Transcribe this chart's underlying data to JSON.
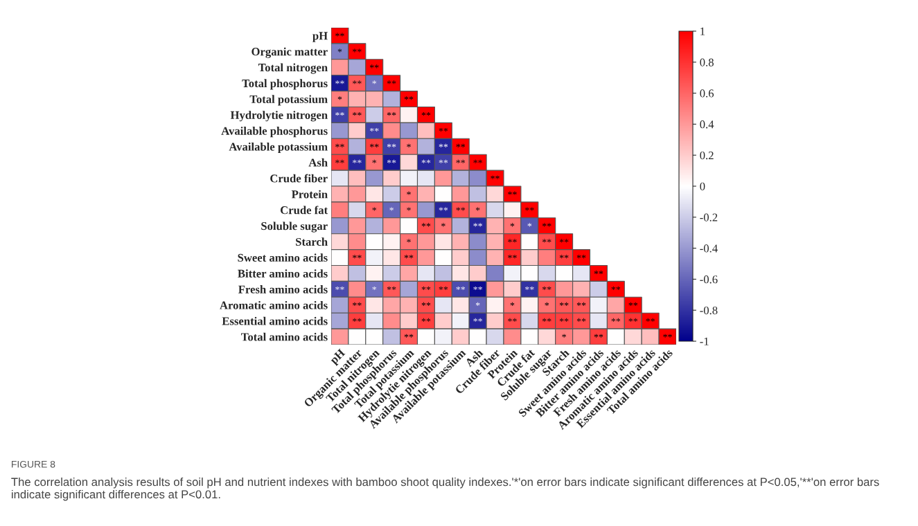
{
  "chart_data": {
    "type": "heatmap",
    "title": "FIGURE 8",
    "annotations": [
      "The correlation analysis results of soil pH and nutrient indexes with bamboo shoot quality indexes.'*'on error bars indicate significant differences at P<0.05,'**'on error bars indicate significant differences at P<0.01."
    ],
    "categories": [
      "pH",
      "Organic matter",
      "Total nitrogen",
      "Total phosphorus",
      "Total potassium",
      "Hydrolytie nitrogen",
      "Available phosphorus",
      "Available potassium",
      "Ash",
      "Crude fiber",
      "Protein",
      "Crude fat",
      "Soluble sugar",
      "Starch",
      "Sweet amino acids",
      "Bitter amino acids",
      "Fresh amino acids",
      "Aromatic amino acids",
      "Essential amino acids",
      "Total amino acids"
    ],
    "y_categories": [
      "pH",
      "Organic matter",
      "Total nitrogen",
      "Total phosphorus",
      "Total potassium",
      "Hydrolytie nitrogen",
      "Available phosphorus",
      "Available potassium",
      "Ash",
      "Crude fiber",
      "Protein",
      "Crude fat",
      "Soluble sugar",
      "Starch",
      "Sweet amino acids",
      "Bitter amino acids",
      "Fresh amino acids",
      "Aromatic amino acids",
      "Essential amino acids",
      "Total amino acids"
    ],
    "cells": [
      [
        1,
        null,
        null,
        null,
        null,
        null,
        null,
        null,
        null,
        null,
        null,
        null,
        null,
        null,
        null,
        null,
        null,
        null,
        null,
        null
      ],
      [
        -0.5,
        1,
        null,
        null,
        null,
        null,
        null,
        null,
        null,
        null,
        null,
        null,
        null,
        null,
        null,
        null,
        null,
        null,
        null,
        null
      ],
      [
        0.4,
        -0.35,
        1,
        null,
        null,
        null,
        null,
        null,
        null,
        null,
        null,
        null,
        null,
        null,
        null,
        null,
        null,
        null,
        null,
        null
      ],
      [
        -0.9,
        0.65,
        -0.55,
        1,
        null,
        null,
        null,
        null,
        null,
        null,
        null,
        null,
        null,
        null,
        null,
        null,
        null,
        null,
        null,
        null
      ],
      [
        0.5,
        0.3,
        0.3,
        -0.3,
        1,
        null,
        null,
        null,
        null,
        null,
        null,
        null,
        null,
        null,
        null,
        null,
        null,
        null,
        null,
        null
      ],
      [
        -0.75,
        0.65,
        -0.2,
        0.6,
        0.05,
        1,
        null,
        null,
        null,
        null,
        null,
        null,
        null,
        null,
        null,
        null,
        null,
        null,
        null,
        null
      ],
      [
        -0.4,
        0.2,
        -0.75,
        0.45,
        -0.4,
        0.25,
        1,
        null,
        null,
        null,
        null,
        null,
        null,
        null,
        null,
        null,
        null,
        null,
        null,
        null
      ],
      [
        0.7,
        -0.3,
        0.75,
        -0.75,
        0.55,
        -0.3,
        -0.85,
        1,
        null,
        null,
        null,
        null,
        null,
        null,
        null,
        null,
        null,
        null,
        null,
        null
      ],
      [
        0.75,
        -0.85,
        0.55,
        -0.9,
        0.15,
        -0.85,
        -0.75,
        0.6,
        1,
        null,
        null,
        null,
        null,
        null,
        null,
        null,
        null,
        null,
        null,
        null
      ],
      [
        -0.1,
        0.25,
        -0.4,
        0.2,
        -0.05,
        -0.1,
        0.4,
        -0.3,
        -0.45,
        1,
        null,
        null,
        null,
        null,
        null,
        null,
        null,
        null,
        null,
        null
      ],
      [
        0.3,
        0.4,
        0.1,
        -0.2,
        0.55,
        0.3,
        0,
        0.4,
        -0.25,
        0.15,
        1,
        null,
        null,
        null,
        null,
        null,
        null,
        null,
        null,
        null
      ],
      [
        0.5,
        -0.15,
        0.6,
        -0.6,
        0.55,
        -0.4,
        -0.85,
        0.7,
        0.55,
        -0.15,
        0.05,
        1,
        null,
        null,
        null,
        null,
        null,
        null,
        null,
        null
      ],
      [
        -0.4,
        0.4,
        -0.3,
        0.4,
        0,
        0.7,
        0.55,
        -0.3,
        -0.85,
        0.3,
        0.55,
        -0.65,
        1,
        null,
        null,
        null,
        null,
        null,
        null,
        null
      ],
      [
        0.15,
        0.45,
        0,
        0.05,
        0.55,
        0.4,
        0.1,
        0.3,
        -0.45,
        0.3,
        0.85,
        0,
        0.7,
        1,
        null,
        null,
        null,
        null,
        null,
        null
      ],
      [
        0,
        0.7,
        -0.05,
        0.1,
        0.7,
        0.4,
        0,
        0.2,
        -0.45,
        0.3,
        0.85,
        0.2,
        0.5,
        0.75,
        1,
        null,
        null,
        null,
        null,
        null
      ],
      [
        0.2,
        -0.25,
        0.05,
        -0.2,
        0.35,
        -0.1,
        -0.25,
        0.1,
        0.2,
        -0.5,
        -0.05,
        0,
        -0.15,
        0,
        -0.1,
        1,
        null,
        null,
        null,
        null
      ],
      [
        -0.7,
        0.45,
        -0.55,
        0.65,
        -0.35,
        0.7,
        0.75,
        -0.7,
        -0.95,
        0.4,
        0.2,
        -0.8,
        0.7,
        0.4,
        0.3,
        -0.2,
        1,
        null,
        null,
        null
      ],
      [
        -0.35,
        0.7,
        0.1,
        0.35,
        0.3,
        0.7,
        -0.1,
        0.1,
        -0.6,
        0.05,
        0.55,
        0.05,
        0.55,
        0.65,
        0.65,
        -0.05,
        0.35,
        1,
        null,
        null
      ],
      [
        -0.35,
        0.75,
        -0.1,
        0.45,
        0.2,
        0.75,
        0.2,
        -0.05,
        -0.85,
        0.2,
        0.7,
        -0.15,
        0.75,
        0.75,
        0.7,
        -0.1,
        0.6,
        0.8,
        1,
        null
      ],
      [
        0.4,
        0,
        0,
        -0.25,
        0.65,
        0,
        -0.05,
        0.2,
        0,
        -0.15,
        0.45,
        0,
        0.15,
        0.5,
        0.4,
        0.75,
        0,
        0.15,
        0.25,
        1
      ]
    ],
    "cell_labels": [
      [
        "**",
        null,
        null,
        null,
        null,
        null,
        null,
        null,
        null,
        null,
        null,
        null,
        null,
        null,
        null,
        null,
        null,
        null,
        null,
        null
      ],
      [
        "*",
        "**",
        null,
        null,
        null,
        null,
        null,
        null,
        null,
        null,
        null,
        null,
        null,
        null,
        null,
        null,
        null,
        null,
        null,
        null
      ],
      [
        null,
        null,
        "**",
        null,
        null,
        null,
        null,
        null,
        null,
        null,
        null,
        null,
        null,
        null,
        null,
        null,
        null,
        null,
        null,
        null
      ],
      [
        "**",
        "**",
        "*",
        "**",
        null,
        null,
        null,
        null,
        null,
        null,
        null,
        null,
        null,
        null,
        null,
        null,
        null,
        null,
        null,
        null
      ],
      [
        "*",
        null,
        null,
        null,
        "**",
        null,
        null,
        null,
        null,
        null,
        null,
        null,
        null,
        null,
        null,
        null,
        null,
        null,
        null,
        null
      ],
      [
        "**",
        "**",
        null,
        "**",
        null,
        "**",
        null,
        null,
        null,
        null,
        null,
        null,
        null,
        null,
        null,
        null,
        null,
        null,
        null,
        null
      ],
      [
        null,
        null,
        "**",
        null,
        null,
        null,
        "**",
        null,
        null,
        null,
        null,
        null,
        null,
        null,
        null,
        null,
        null,
        null,
        null,
        null
      ],
      [
        "**",
        null,
        "**",
        "**",
        "*",
        null,
        "**",
        "**",
        null,
        null,
        null,
        null,
        null,
        null,
        null,
        null,
        null,
        null,
        null,
        null
      ],
      [
        "**",
        "**",
        "*",
        "**",
        null,
        "**",
        "**",
        "**",
        "**",
        null,
        null,
        null,
        null,
        null,
        null,
        null,
        null,
        null,
        null,
        null
      ],
      [
        null,
        null,
        null,
        null,
        null,
        null,
        null,
        null,
        null,
        "**",
        null,
        null,
        null,
        null,
        null,
        null,
        null,
        null,
        null,
        null
      ],
      [
        null,
        null,
        null,
        null,
        "*",
        null,
        null,
        null,
        null,
        null,
        "**",
        null,
        null,
        null,
        null,
        null,
        null,
        null,
        null,
        null
      ],
      [
        null,
        null,
        "*",
        "*",
        "*",
        null,
        "**",
        "**",
        "*",
        null,
        null,
        "**",
        null,
        null,
        null,
        null,
        null,
        null,
        null,
        null
      ],
      [
        null,
        null,
        null,
        null,
        null,
        "**",
        "*",
        null,
        "**",
        null,
        "*",
        "*",
        "**",
        null,
        null,
        null,
        null,
        null,
        null,
        null
      ],
      [
        null,
        null,
        null,
        null,
        "*",
        null,
        null,
        null,
        null,
        null,
        "**",
        null,
        "**",
        "**",
        null,
        null,
        null,
        null,
        null,
        null
      ],
      [
        null,
        "**",
        null,
        null,
        "**",
        null,
        null,
        null,
        null,
        null,
        "**",
        null,
        null,
        "**",
        "**",
        null,
        null,
        null,
        null,
        null
      ],
      [
        null,
        null,
        null,
        null,
        null,
        null,
        null,
        null,
        null,
        null,
        null,
        null,
        null,
        null,
        null,
        "**",
        null,
        null,
        null,
        null
      ],
      [
        "**",
        null,
        "*",
        "**",
        null,
        "**",
        "**",
        "**",
        "**",
        null,
        null,
        "**",
        "**",
        null,
        null,
        null,
        "**",
        null,
        null,
        null
      ],
      [
        null,
        "**",
        null,
        null,
        null,
        "**",
        null,
        null,
        "*",
        null,
        "*",
        null,
        "*",
        "**",
        "**",
        null,
        null,
        "**",
        null,
        null
      ],
      [
        null,
        "**",
        null,
        null,
        null,
        "**",
        null,
        null,
        "**",
        null,
        "**",
        null,
        "**",
        "**",
        "**",
        null,
        "**",
        "**",
        "**",
        null
      ],
      [
        null,
        null,
        null,
        null,
        "**",
        null,
        null,
        null,
        null,
        null,
        null,
        null,
        null,
        "*",
        null,
        "**",
        null,
        null,
        null,
        "**"
      ]
    ],
    "clim": [
      -1,
      1
    ],
    "cticks": [
      {
        "value": -1,
        "label": "-1"
      },
      {
        "value": -0.8,
        "label": "-0.8"
      },
      {
        "value": -0.6,
        "label": "-0.6"
      },
      {
        "value": -0.4,
        "label": "-0.4"
      },
      {
        "value": -0.2,
        "label": "-0.2"
      },
      0,
      0.2,
      0.4,
      0.6,
      0.8,
      1
    ]
  }
}
